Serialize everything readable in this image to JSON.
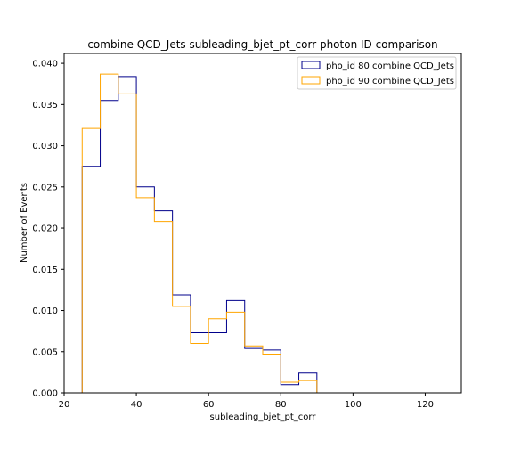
{
  "chart_data": {
    "type": "step-histogram",
    "title": "combine QCD_Jets subleading_bjet_pt_corr photon ID comparison",
    "xlabel": "subleading_bjet_pt_corr",
    "ylabel": "Number of Events",
    "xlim": [
      20,
      130
    ],
    "ylim": [
      0,
      0.0412
    ],
    "xticks": [
      20,
      40,
      60,
      80,
      100,
      120
    ],
    "xtick_labels": [
      "20",
      "40",
      "60",
      "80",
      "100",
      "120"
    ],
    "yticks": [
      0,
      0.005,
      0.01,
      0.015,
      0.02,
      0.025,
      0.03,
      0.035,
      0.04
    ],
    "ytick_labels": [
      "0.000",
      "0.005",
      "0.010",
      "0.015",
      "0.020",
      "0.025",
      "0.030",
      "0.035",
      "0.040"
    ],
    "bin_edges": [
      25,
      30,
      35,
      40,
      45,
      50,
      55,
      60,
      65,
      70,
      75,
      80,
      85,
      90
    ],
    "series": [
      {
        "name": "pho_id 80 combine QCD_Jets",
        "color": "#00008b",
        "values": [
          0.0275,
          0.0355,
          0.0384,
          0.025,
          0.0221,
          0.0119,
          0.0073,
          0.0073,
          0.0112,
          0.0054,
          0.0052,
          0.001,
          0.0024
        ]
      },
      {
        "name": "pho_id 90 combine QCD_Jets",
        "color": "#ffa500",
        "values": [
          0.0321,
          0.0387,
          0.0363,
          0.0237,
          0.0208,
          0.0105,
          0.006,
          0.009,
          0.0098,
          0.0057,
          0.0047,
          0.0013,
          0.0015
        ]
      }
    ],
    "legend_position": "top-right"
  }
}
